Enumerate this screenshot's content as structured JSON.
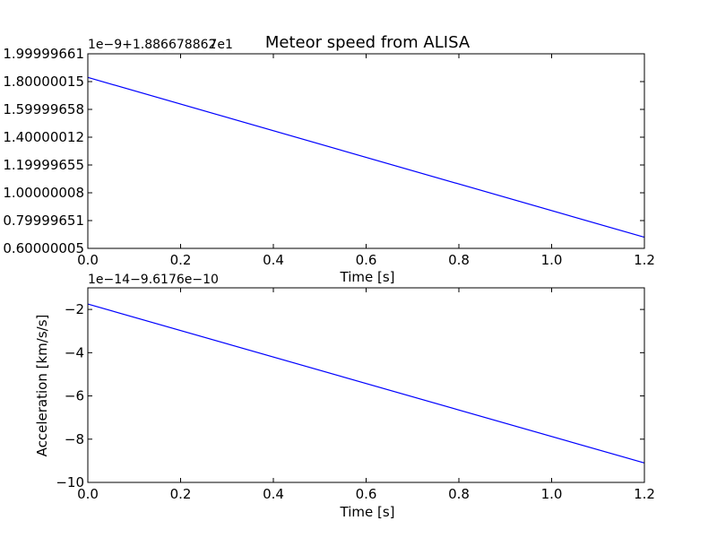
{
  "colors": {
    "line": "#0000ff",
    "axes": "#000000",
    "background": "#ffffff"
  },
  "chart_data": [
    {
      "type": "line",
      "title": "Meteor speed from  ALISA",
      "offset_label": "1e−9+1.886678862",
      "offset_label_overlap": "7e1",
      "xlabel": "Time [s]",
      "ylabel": "",
      "xlim": [
        0.0,
        1.2
      ],
      "ylim": [
        0.60000005,
        1.99999661
      ],
      "x_ticks": [
        0.0,
        0.2,
        0.4,
        0.6,
        0.8,
        1.0,
        1.2
      ],
      "x_tick_labels": [
        "0.0",
        "0.2",
        "0.4",
        "0.6",
        "0.8",
        "1.0",
        "1.2"
      ],
      "y_ticks": [
        0.60000005,
        0.79999651,
        1.00000008,
        1.19999655,
        1.40000012,
        1.59999658,
        1.80000015,
        1.99999661
      ],
      "y_tick_labels": [
        "0.60000005",
        "0.79999651",
        "1.00000008",
        "1.19999655",
        "1.40000012",
        "1.59999658",
        "1.80000015",
        "1.99999661"
      ],
      "series": [
        {
          "x": [
            0.0,
            1.2
          ],
          "y": [
            1.83,
            0.68
          ]
        }
      ]
    },
    {
      "type": "line",
      "title": "",
      "offset_label": "1e−14−9.6176e−10",
      "xlabel": "Time [s]",
      "ylabel": "Acceleration [km/s/s]",
      "xlim": [
        0.0,
        1.2
      ],
      "ylim": [
        -10,
        -1
      ],
      "x_ticks": [
        0.0,
        0.2,
        0.4,
        0.6,
        0.8,
        1.0,
        1.2
      ],
      "x_tick_labels": [
        "0.0",
        "0.2",
        "0.4",
        "0.6",
        "0.8",
        "1.0",
        "1.2"
      ],
      "y_ticks": [
        -10,
        -8,
        -6,
        -4,
        -2
      ],
      "y_tick_labels": [
        "−10",
        "−8",
        "−6",
        "−4",
        "−2"
      ],
      "series": [
        {
          "x": [
            0.0,
            1.2
          ],
          "y": [
            -1.75,
            -9.1
          ]
        }
      ]
    }
  ]
}
